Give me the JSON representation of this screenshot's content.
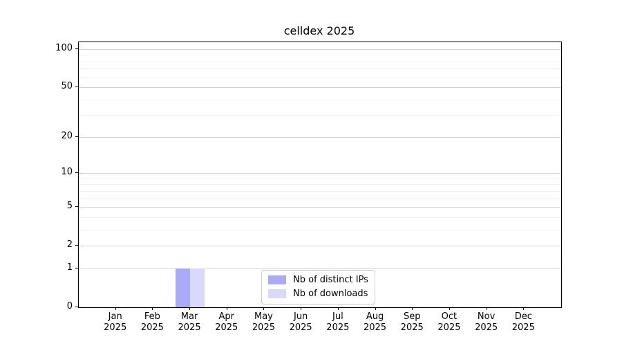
{
  "chart_data": {
    "type": "bar",
    "title": "celldex 2025",
    "categories": [
      "Jan\n2025",
      "Feb\n2025",
      "Mar\n2025",
      "Apr\n2025",
      "May\n2025",
      "Jun\n2025",
      "Jul\n2025",
      "Aug\n2025",
      "Sep\n2025",
      "Oct\n2025",
      "Nov\n2025",
      "Dec\n2025"
    ],
    "series": [
      {
        "name": "Nb of distinct IPs",
        "color": "#aaaaf8",
        "values": [
          0,
          0,
          1,
          0,
          0,
          0,
          0,
          0,
          0,
          0,
          0,
          0
        ]
      },
      {
        "name": "Nb of downloads",
        "color": "#d9d9f9",
        "values": [
          0,
          0,
          1,
          0,
          0,
          0,
          0,
          0,
          0,
          0,
          0,
          0
        ]
      }
    ],
    "xlabel": "",
    "ylabel": "",
    "yscale": "log1p",
    "yticks": [
      0,
      1,
      2,
      5,
      10,
      20,
      50,
      100
    ],
    "minor_gridlines": [
      3,
      4,
      6,
      7,
      8,
      9,
      30,
      40,
      60,
      70,
      80,
      90
    ],
    "ylim": [
      0,
      113
    ],
    "grid": "horizontal",
    "legend_position": "lower center",
    "colors": {
      "major_grid": "#d4d4d4",
      "minor_grid": "#f0f0f0",
      "axis": "#000000",
      "background": "#ffffff"
    }
  }
}
